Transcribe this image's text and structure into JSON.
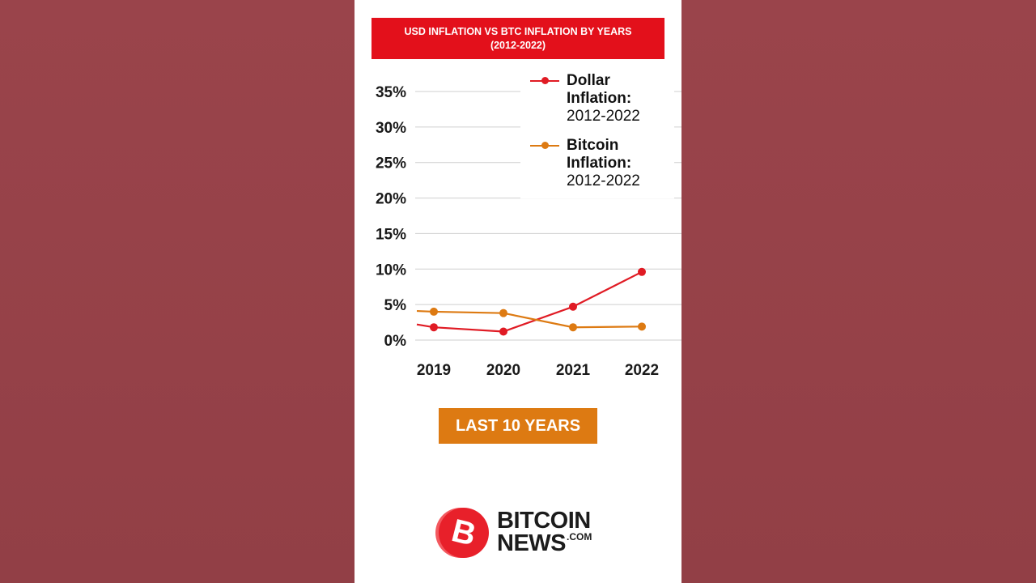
{
  "banner": {
    "line1": "USD INFLATION VS BTC INFLATION  BY YEARS",
    "line2": "(2012-2022)"
  },
  "chart_data": {
    "type": "line",
    "title": "USD INFLATION VS BTC INFLATION  BY YEARS (2012-2022)",
    "categories": [
      "2019",
      "2020",
      "2021",
      "2022"
    ],
    "y_tick_labels": [
      "0%",
      "5%",
      "10%",
      "15%",
      "20%",
      "25%",
      "30%",
      "35%"
    ],
    "ylim": [
      0,
      35
    ],
    "grid": true,
    "legend_position": "top-right",
    "series": [
      {
        "name": "Dollar Inflation: 2012-2022",
        "name_bold": "Dollar Inflation:",
        "name_range": "2012-2022",
        "color": "#e01b24",
        "left_value": 2.2,
        "values": [
          1.8,
          1.2,
          4.7,
          9.6
        ]
      },
      {
        "name": "Bitcoin Inflation: 2012-2022",
        "name_bold": "Bitcoin Inflation:",
        "name_range": "2012-2022",
        "color": "#dd7a12",
        "left_value": 4.1,
        "values": [
          4.0,
          3.8,
          1.8,
          1.9
        ]
      }
    ]
  },
  "cta": {
    "label": "LAST 10 YEARS",
    "color": "#dd7a12"
  },
  "logo": {
    "word1": "BITCOIN",
    "word2": "NEWS",
    "suffix": ".COM",
    "symbol": "B",
    "color": "#e8202a"
  }
}
